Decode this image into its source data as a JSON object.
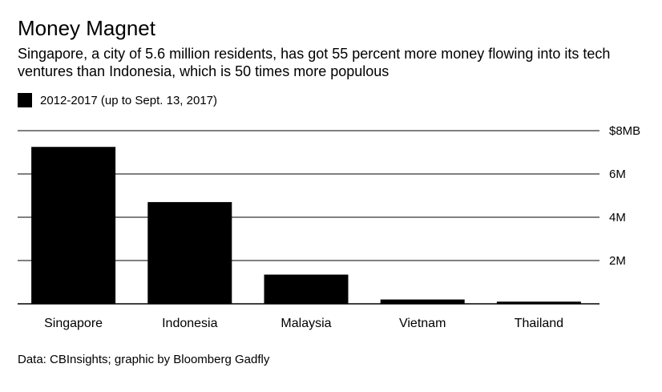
{
  "chart_data": {
    "type": "bar",
    "title": "Money Magnet",
    "subtitle": "Singapore, a city of 5.6 million residents, has got 55 percent more money flowing into its tech ventures than Indonesia, which is 50 times more populous",
    "categories": [
      "Singapore",
      "Indonesia",
      "Malaysia",
      "Vietnam",
      "Thailand"
    ],
    "series": [
      {
        "name": "2012-2017 (up to Sept. 13, 2017)",
        "values": [
          7.25,
          4.7,
          1.35,
          0.2,
          0.1
        ],
        "color": "#000000"
      }
    ],
    "ylim": [
      0,
      8
    ],
    "yticks": [
      2,
      4,
      6,
      8
    ],
    "ytick_labels": [
      "2M",
      "4M",
      "6M",
      "$8MB"
    ],
    "xlabel": "",
    "ylabel": "",
    "grid": true,
    "legend_position": "top-left",
    "source": "Data: CBInsights; graphic by Bloomberg Gadfly"
  }
}
